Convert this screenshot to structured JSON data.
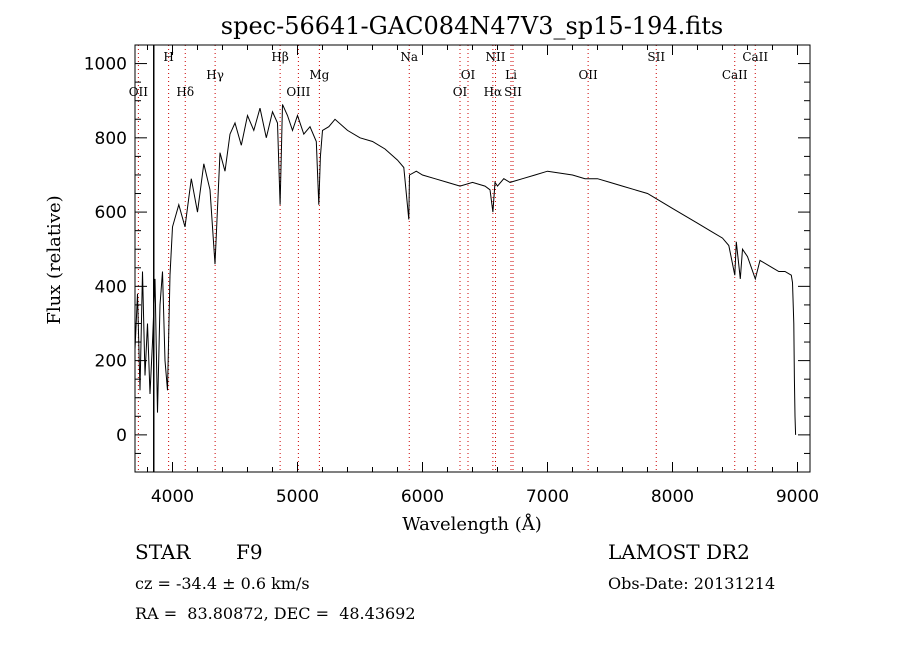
{
  "chart_data": {
    "type": "line",
    "title": "spec-56641-GAC084N47V3_sp15-194.fits",
    "xlabel": "Wavelength (Å)",
    "ylabel": "Flux (relative)",
    "xlim": [
      3700,
      9100
    ],
    "ylim": [
      -100,
      1050
    ],
    "x_ticks": [
      4000,
      5000,
      6000,
      7000,
      8000,
      9000
    ],
    "y_ticks": [
      0,
      200,
      400,
      600,
      800,
      1000
    ],
    "grid": false,
    "series": [
      {
        "x": [
          3700,
          3720,
          3740,
          3760,
          3780,
          3800,
          3820,
          3840,
          3860,
          3880,
          3900,
          3920,
          3940,
          3960,
          3980,
          4000,
          4050,
          4100,
          4150,
          4200,
          4250,
          4300,
          4340,
          4380,
          4420,
          4460,
          4500,
          4550,
          4600,
          4650,
          4700,
          4750,
          4800,
          4840,
          4861,
          4880,
          4920,
          4960,
          5000,
          5050,
          5100,
          5150,
          5170,
          5183,
          5200,
          5250,
          5300,
          5400,
          5500,
          5600,
          5700,
          5800,
          5850,
          5890,
          5896,
          5950,
          6000,
          6100,
          6200,
          6300,
          6400,
          6500,
          6540,
          6563,
          6580,
          6600,
          6650,
          6700,
          6800,
          6900,
          7000,
          7100,
          7200,
          7300,
          7400,
          7500,
          7600,
          7700,
          7800,
          7900,
          8000,
          8100,
          8200,
          8300,
          8400,
          8450,
          8498,
          8510,
          8542,
          8560,
          8600,
          8662,
          8700,
          8800,
          8850,
          8900,
          8950,
          8960,
          8970,
          8975,
          8980,
          8985
        ],
        "y": [
          230,
          380,
          120,
          440,
          160,
          300,
          110,
          250,
          420,
          60,
          350,
          440,
          200,
          120,
          430,
          560,
          620,
          560,
          690,
          600,
          730,
          660,
          460,
          760,
          710,
          810,
          840,
          780,
          860,
          820,
          880,
          800,
          870,
          840,
          620,
          890,
          860,
          820,
          860,
          810,
          830,
          790,
          620,
          750,
          820,
          830,
          850,
          820,
          800,
          790,
          770,
          740,
          720,
          580,
          700,
          710,
          700,
          690,
          680,
          670,
          680,
          670,
          660,
          600,
          680,
          670,
          690,
          680,
          690,
          700,
          710,
          705,
          700,
          690,
          690,
          680,
          670,
          660,
          650,
          630,
          610,
          590,
          570,
          550,
          530,
          510,
          430,
          520,
          420,
          500,
          480,
          420,
          470,
          450,
          440,
          440,
          430,
          410,
          300,
          150,
          50,
          0
        ]
      }
    ],
    "emission_lines": [
      {
        "label": "OII",
        "x": 3727,
        "row": 3
      },
      {
        "label": "H",
        "x": 3969,
        "row": 0
      },
      {
        "label": "Hδ",
        "x": 4102,
        "row": 3
      },
      {
        "label": "Hγ",
        "x": 4341,
        "row": 2
      },
      {
        "label": "Hβ",
        "x": 4861,
        "row": 0
      },
      {
        "label": "OIII",
        "x": 5007,
        "row": 3
      },
      {
        "label": "Mg",
        "x": 5175,
        "row": 2
      },
      {
        "label": "Na",
        "x": 5894,
        "row": 0
      },
      {
        "label": "OI",
        "x": 6300,
        "row": 3
      },
      {
        "label": "OI",
        "x": 6364,
        "row": 2
      },
      {
        "label": "NII",
        "x": 6584,
        "row": 0
      },
      {
        "label": "Hα",
        "x": 6563,
        "row": 3
      },
      {
        "label": "Li",
        "x": 6708,
        "row": 2
      },
      {
        "label": "SII",
        "x": 6724,
        "row": 3
      },
      {
        "label": "OII",
        "x": 7325,
        "row": 2
      },
      {
        "label": "SII",
        "x": 7870,
        "row": 0
      },
      {
        "label": "CaII",
        "x": 8498,
        "row": 2
      },
      {
        "label": "CaII",
        "x": 8662,
        "row": 0
      }
    ],
    "marker_line_x": 3850
  },
  "info": {
    "object_class": "STAR",
    "subclass": "F9",
    "survey": "LAMOST DR2",
    "redshift": "cz = -34.4 ± 0.6 km/s",
    "obs_date": "Obs-Date: 20131214",
    "coordinates": "RA =  83.80872, DEC =  48.43692"
  },
  "colors": {
    "line": "#000000",
    "marker": "#cc0000",
    "axes": "#000000"
  }
}
